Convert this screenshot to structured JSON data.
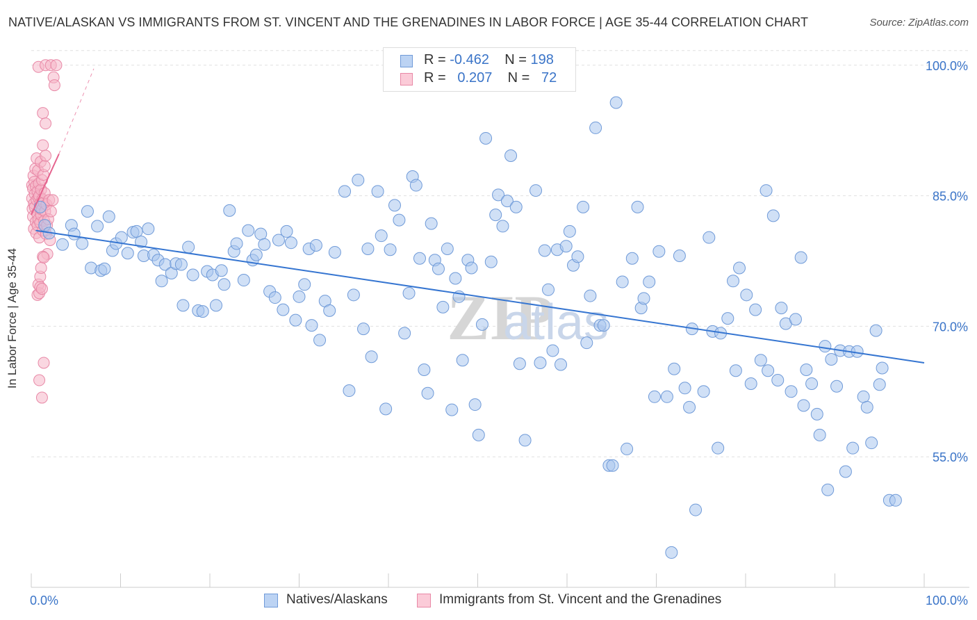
{
  "title": "NATIVE/ALASKAN VS IMMIGRANTS FROM ST. VINCENT AND THE GRENADINES IN LABOR FORCE | AGE 35-44 CORRELATION CHART",
  "source": "Source: ZipAtlas.com",
  "legend": {
    "rows": [
      {
        "r_label": "R =",
        "r_value": "-0.462",
        "n_label": "N =",
        "n_value": "198"
      },
      {
        "r_label": "R =",
        "r_value": "0.207",
        "n_label": "N =",
        "n_value": "72"
      }
    ]
  },
  "colors": {
    "series1_fill": "#a9c6ee",
    "series1_stroke": "#6f9ad8",
    "series1_line": "#3575d1",
    "series2_fill": "#f6b6c8",
    "series2_stroke": "#e888a6",
    "series2_line": "#e5638e",
    "grid": "#e0e0e0",
    "tick_text": "#3a74c8"
  },
  "chart_data": {
    "type": "scatter",
    "title": "NATIVE/ALASKAN VS IMMIGRANTS FROM ST. VINCENT AND THE GRENADINES IN LABOR FORCE | AGE 35-44 CORRELATION CHART",
    "xlabel": "",
    "ylabel": "In Labor Force | Age 35-44",
    "xlim": [
      0,
      100
    ],
    "ylim": [
      40,
      101.5
    ],
    "x_tick_labels": [
      "0.0%",
      "100.0%"
    ],
    "y_ticks": [
      55,
      70,
      85,
      100
    ],
    "y_tick_labels": [
      "55.0%",
      "70.0%",
      "85.0%",
      "100.0%"
    ],
    "grid": true,
    "legend_position": "bottom-center",
    "watermark": "ZIPatlas",
    "series": [
      {
        "name": "Natives/Alaskans",
        "R": -0.462,
        "N": 198,
        "trend": {
          "x": [
            0.5,
            100
          ],
          "y": [
            81.0,
            65.8
          ]
        },
        "points": [
          [
            1.0,
            83.7
          ],
          [
            1.5,
            81.6
          ],
          [
            2.0,
            80.7
          ],
          [
            3.5,
            79.4
          ],
          [
            4.5,
            81.6
          ],
          [
            4.8,
            80.6
          ],
          [
            5.7,
            79.5
          ],
          [
            6.3,
            83.2
          ],
          [
            6.7,
            76.7
          ],
          [
            7.4,
            81.5
          ],
          [
            7.8,
            76.4
          ],
          [
            8.2,
            76.6
          ],
          [
            8.7,
            82.6
          ],
          [
            9.1,
            78.7
          ],
          [
            9.5,
            79.5
          ],
          [
            10.1,
            80.2
          ],
          [
            10.8,
            78.4
          ],
          [
            11.4,
            80.8
          ],
          [
            11.8,
            80.9
          ],
          [
            12.3,
            79.7
          ],
          [
            12.6,
            78.1
          ],
          [
            13.1,
            81.2
          ],
          [
            13.7,
            78.2
          ],
          [
            14.2,
            77.6
          ],
          [
            14.6,
            75.2
          ],
          [
            15.0,
            77.1
          ],
          [
            15.7,
            76.1
          ],
          [
            16.2,
            77.2
          ],
          [
            16.8,
            77.1
          ],
          [
            17.0,
            72.4
          ],
          [
            17.6,
            79.1
          ],
          [
            18.1,
            75.9
          ],
          [
            18.7,
            71.8
          ],
          [
            19.2,
            71.7
          ],
          [
            19.7,
            76.3
          ],
          [
            20.3,
            75.9
          ],
          [
            20.7,
            72.4
          ],
          [
            21.3,
            76.4
          ],
          [
            21.6,
            74.8
          ],
          [
            22.2,
            83.3
          ],
          [
            22.7,
            78.6
          ],
          [
            23.0,
            79.5
          ],
          [
            23.8,
            75.3
          ],
          [
            24.3,
            81.0
          ],
          [
            24.8,
            77.6
          ],
          [
            25.2,
            78.2
          ],
          [
            25.7,
            80.6
          ],
          [
            26.1,
            79.4
          ],
          [
            26.7,
            74.0
          ],
          [
            27.3,
            73.3
          ],
          [
            27.7,
            79.9
          ],
          [
            28.2,
            71.9
          ],
          [
            28.6,
            80.9
          ],
          [
            29.1,
            79.6
          ],
          [
            29.6,
            70.7
          ],
          [
            30.0,
            73.4
          ],
          [
            30.6,
            74.8
          ],
          [
            31.1,
            78.9
          ],
          [
            31.4,
            70.1
          ],
          [
            31.9,
            79.3
          ],
          [
            32.3,
            68.4
          ],
          [
            32.9,
            72.9
          ],
          [
            33.4,
            71.8
          ],
          [
            34.0,
            78.5
          ],
          [
            35.1,
            85.5
          ],
          [
            35.6,
            62.6
          ],
          [
            36.1,
            73.6
          ],
          [
            36.6,
            86.8
          ],
          [
            37.2,
            69.7
          ],
          [
            37.7,
            78.9
          ],
          [
            38.1,
            66.5
          ],
          [
            38.8,
            85.5
          ],
          [
            39.2,
            80.4
          ],
          [
            39.7,
            60.5
          ],
          [
            40.2,
            78.8
          ],
          [
            40.7,
            83.9
          ],
          [
            41.2,
            82.2
          ],
          [
            41.8,
            69.2
          ],
          [
            42.3,
            73.8
          ],
          [
            42.7,
            87.2
          ],
          [
            43.1,
            86.2
          ],
          [
            43.5,
            77.8
          ],
          [
            44.0,
            65.0
          ],
          [
            44.4,
            62.3
          ],
          [
            44.8,
            81.8
          ],
          [
            45.2,
            77.6
          ],
          [
            45.6,
            76.6
          ],
          [
            46.1,
            72.2
          ],
          [
            46.6,
            78.9
          ],
          [
            47.1,
            60.4
          ],
          [
            47.5,
            75.5
          ],
          [
            47.9,
            73.4
          ],
          [
            48.3,
            66.1
          ],
          [
            48.9,
            77.6
          ],
          [
            49.3,
            76.7
          ],
          [
            49.7,
            61.0
          ],
          [
            50.1,
            57.5
          ],
          [
            50.5,
            70.2
          ],
          [
            50.9,
            91.6
          ],
          [
            51.5,
            77.4
          ],
          [
            52.0,
            82.8
          ],
          [
            52.3,
            85.1
          ],
          [
            52.8,
            81.5
          ],
          [
            53.3,
            84.4
          ],
          [
            53.7,
            89.6
          ],
          [
            54.3,
            83.7
          ],
          [
            54.7,
            65.7
          ],
          [
            55.3,
            56.9
          ],
          [
            56.1,
            99.8
          ],
          [
            56.5,
            85.6
          ],
          [
            57.0,
            65.8
          ],
          [
            57.5,
            78.7
          ],
          [
            57.9,
            74.2
          ],
          [
            58.4,
            67.2
          ],
          [
            58.9,
            78.8
          ],
          [
            59.3,
            65.6
          ],
          [
            59.9,
            79.2
          ],
          [
            60.3,
            80.9
          ],
          [
            60.7,
            77.0
          ],
          [
            61.2,
            78.0
          ],
          [
            61.8,
            83.7
          ],
          [
            62.2,
            68.1
          ],
          [
            62.6,
            73.5
          ],
          [
            63.2,
            92.8
          ],
          [
            63.7,
            70.1
          ],
          [
            64.1,
            70.1
          ],
          [
            64.7,
            54.0
          ],
          [
            65.1,
            54.0
          ],
          [
            65.5,
            95.7
          ],
          [
            66.2,
            75.1
          ],
          [
            66.7,
            55.9
          ],
          [
            67.3,
            77.8
          ],
          [
            67.9,
            83.7
          ],
          [
            68.3,
            72.1
          ],
          [
            68.6,
            73.2
          ],
          [
            69.2,
            75.1
          ],
          [
            69.8,
            61.9
          ],
          [
            70.3,
            78.6
          ],
          [
            71.2,
            61.9
          ],
          [
            71.7,
            44.0
          ],
          [
            72.0,
            65.1
          ],
          [
            72.6,
            78.1
          ],
          [
            73.2,
            62.9
          ],
          [
            73.7,
            60.7
          ],
          [
            74.0,
            69.7
          ],
          [
            74.4,
            48.9
          ],
          [
            75.3,
            62.5
          ],
          [
            75.9,
            80.2
          ],
          [
            76.3,
            69.4
          ],
          [
            76.9,
            56.0
          ],
          [
            77.2,
            69.2
          ],
          [
            78.0,
            70.9
          ],
          [
            78.6,
            75.2
          ],
          [
            78.9,
            64.9
          ],
          [
            79.3,
            76.7
          ],
          [
            80.1,
            73.6
          ],
          [
            80.6,
            63.4
          ],
          [
            81.1,
            71.9
          ],
          [
            81.7,
            66.1
          ],
          [
            82.3,
            85.6
          ],
          [
            82.5,
            64.9
          ],
          [
            83.1,
            82.7
          ],
          [
            83.6,
            63.8
          ],
          [
            84.0,
            72.1
          ],
          [
            84.5,
            70.3
          ],
          [
            85.1,
            62.5
          ],
          [
            85.6,
            70.8
          ],
          [
            86.2,
            77.9
          ],
          [
            86.5,
            60.9
          ],
          [
            86.8,
            65.0
          ],
          [
            87.4,
            63.4
          ],
          [
            88.0,
            59.9
          ],
          [
            88.3,
            57.5
          ],
          [
            88.9,
            67.7
          ],
          [
            89.2,
            51.2
          ],
          [
            89.6,
            66.2
          ],
          [
            90.2,
            63.1
          ],
          [
            90.6,
            67.2
          ],
          [
            91.2,
            53.3
          ],
          [
            91.6,
            67.1
          ],
          [
            92.0,
            56.0
          ],
          [
            92.5,
            67.1
          ],
          [
            93.2,
            61.9
          ],
          [
            93.6,
            60.7
          ],
          [
            94.1,
            56.6
          ],
          [
            94.6,
            69.5
          ],
          [
            95.0,
            63.3
          ],
          [
            95.3,
            65.2
          ],
          [
            96.1,
            50.0
          ],
          [
            96.8,
            50.0
          ]
        ]
      },
      {
        "name": "Immigrants from St. Vincent and the Grenadines",
        "R": 0.207,
        "N": 72,
        "trend": {
          "x": [
            0.0,
            3.1
          ],
          "y": [
            82.8,
            89.8
          ],
          "extended_to": [
            7.0,
            99.6
          ]
        },
        "points": [
          [
            0.1,
            86.2
          ],
          [
            0.1,
            84.7
          ],
          [
            0.15,
            83.5
          ],
          [
            0.2,
            85.8
          ],
          [
            0.2,
            82.6
          ],
          [
            0.25,
            87.3
          ],
          [
            0.3,
            84.1
          ],
          [
            0.3,
            81.2
          ],
          [
            0.35,
            86.6
          ],
          [
            0.4,
            85.2
          ],
          [
            0.4,
            83.7
          ],
          [
            0.45,
            88.1
          ],
          [
            0.5,
            82.0
          ],
          [
            0.5,
            86.1
          ],
          [
            0.55,
            80.7
          ],
          [
            0.6,
            84.5
          ],
          [
            0.6,
            89.3
          ],
          [
            0.65,
            83.0
          ],
          [
            0.7,
            85.5
          ],
          [
            0.7,
            81.6
          ],
          [
            0.75,
            87.9
          ],
          [
            0.8,
            84.8
          ],
          [
            0.8,
            82.3
          ],
          [
            0.85,
            86.4
          ],
          [
            0.9,
            85.0
          ],
          [
            0.9,
            80.2
          ],
          [
            0.95,
            83.6
          ],
          [
            1.0,
            84.1
          ],
          [
            1.0,
            81.9
          ],
          [
            1.05,
            88.9
          ],
          [
            1.1,
            85.7
          ],
          [
            1.1,
            82.8
          ],
          [
            1.2,
            86.8
          ],
          [
            1.2,
            83.4
          ],
          [
            1.25,
            84.6
          ],
          [
            1.3,
            90.8
          ],
          [
            1.3,
            81.0
          ],
          [
            1.35,
            87.4
          ],
          [
            1.4,
            84.2
          ],
          [
            1.45,
            82.1
          ],
          [
            1.5,
            85.3
          ],
          [
            1.5,
            88.4
          ],
          [
            1.55,
            83.2
          ],
          [
            1.6,
            89.6
          ],
          [
            1.65,
            80.6
          ],
          [
            1.7,
            84.0
          ],
          [
            1.75,
            81.6
          ],
          [
            1.8,
            78.3
          ],
          [
            1.9,
            82.3
          ],
          [
            2.0,
            84.5
          ],
          [
            2.1,
            79.9
          ],
          [
            2.2,
            83.2
          ],
          [
            2.4,
            84.5
          ],
          [
            0.7,
            73.6
          ],
          [
            0.8,
            74.8
          ],
          [
            0.9,
            73.8
          ],
          [
            1.0,
            75.7
          ],
          [
            1.0,
            74.5
          ],
          [
            1.2,
            74.3
          ],
          [
            1.1,
            76.7
          ],
          [
            1.3,
            78.0
          ],
          [
            1.4,
            77.9
          ],
          [
            0.9,
            63.8
          ],
          [
            1.2,
            61.8
          ],
          [
            1.4,
            65.8
          ],
          [
            0.8,
            99.8
          ],
          [
            1.6,
            100.0
          ],
          [
            2.2,
            100.0
          ],
          [
            2.8,
            100.0
          ],
          [
            2.5,
            98.6
          ],
          [
            2.6,
            97.7
          ],
          [
            1.3,
            94.5
          ],
          [
            1.6,
            93.3
          ]
        ]
      }
    ]
  }
}
